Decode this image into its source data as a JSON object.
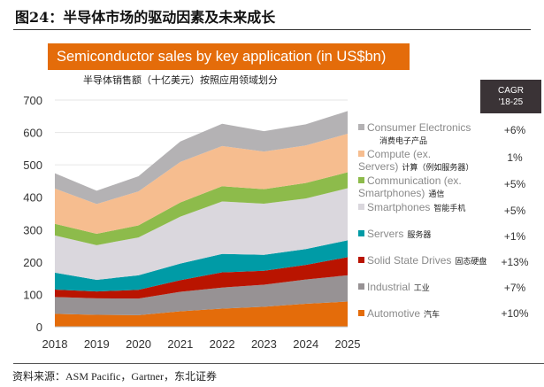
{
  "figure_title": "图24：半导体市场的驱动因素及未来成长",
  "source": "资料来源：ASM Pacific，Gartner，东北证券",
  "chart_data": {
    "type": "area",
    "stacked": true,
    "title": "Semiconductor sales by key application (in US$bn)",
    "subtitle": "半导体销售额（十亿美元）按照应用领域划分",
    "x": [
      "2018",
      "2019",
      "2020",
      "2021",
      "2022",
      "2023",
      "2024",
      "2025"
    ],
    "ylim": [
      0,
      700
    ],
    "yticks": [
      "0",
      "100",
      "200",
      "300",
      "400",
      "500",
      "600",
      "700"
    ],
    "grid": true,
    "legend_placement": "right",
    "cagr_header": [
      "CAGR",
      "'18-25"
    ],
    "series": [
      {
        "name": "Automotive",
        "name_zh": "汽车",
        "cagr": "+10%",
        "color": "#E46C0A",
        "values": [
          40,
          37,
          36,
          48,
          56,
          62,
          71,
          78
        ]
      },
      {
        "name": "Industrial",
        "name_zh": "工业",
        "cagr": "+7%",
        "color": "#979294",
        "values": [
          52,
          51,
          51,
          60,
          65,
          68,
          75,
          81
        ]
      },
      {
        "name": "Solid State Drives",
        "name_zh": "固态硬盘",
        "cagr": "+13%",
        "color": "#B91400",
        "values": [
          23,
          21,
          27,
          36,
          47,
          43,
          45,
          56
        ]
      },
      {
        "name": "Servers",
        "name_zh": "服务器",
        "cagr": "+1%",
        "color": "#009BA6",
        "values": [
          52,
          36,
          45,
          51,
          57,
          49,
          49,
          52
        ]
      },
      {
        "name": "Smartphones",
        "name_zh": "智能手机",
        "cagr": "+5%",
        "color": "#DAD7DD",
        "values": [
          115,
          107,
          117,
          145,
          162,
          158,
          156,
          161
        ]
      },
      {
        "name": "Communication (ex. Smartphones)",
        "name_zh": "通信",
        "cagr": "+5%",
        "color": "#8DBB4B",
        "values": [
          36,
          35,
          37,
          44,
          47,
          45,
          48,
          49
        ]
      },
      {
        "name": "Compute (ex. Servers)",
        "name_zh": "计算（例如服务器）",
        "cagr": "1%",
        "color": "#F6BD8F",
        "values": [
          109,
          92,
          105,
          125,
          124,
          116,
          116,
          119
        ]
      },
      {
        "name": "Consumer Electronics",
        "name_zh": "消费电子产品",
        "cagr": "+6%",
        "color": "#B4B2B4",
        "values": [
          47,
          41,
          47,
          63,
          69,
          63,
          65,
          70
        ]
      }
    ]
  }
}
